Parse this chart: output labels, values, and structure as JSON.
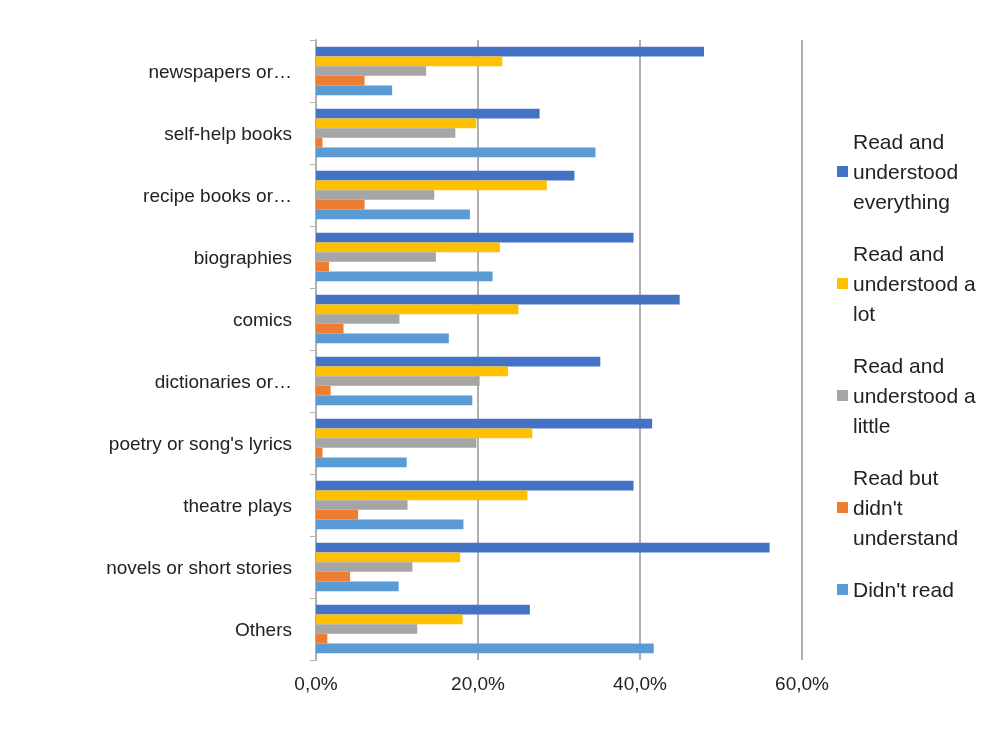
{
  "chart_data": {
    "type": "bar",
    "orientation": "horizontal",
    "categories": [
      "newspapers or…",
      "self-help books",
      "recipe books or…",
      "biographies",
      "comics",
      "dictionaries or…",
      "poetry or song's lyrics",
      "theatre plays",
      "novels or short stories",
      "Others"
    ],
    "series": [
      {
        "name": "Read and understood everything",
        "color": "#4472c4",
        "values": [
          47.9,
          27.6,
          31.9,
          39.2,
          44.9,
          35.1,
          41.5,
          39.2,
          56.0,
          26.4
        ]
      },
      {
        "name": "Read and understood a lot",
        "color": "#ffc000",
        "values": [
          23.0,
          19.8,
          28.5,
          22.7,
          25.0,
          23.7,
          26.7,
          26.1,
          17.8,
          18.1
        ]
      },
      {
        "name": "Read and understood a little",
        "color": "#a5a5a5",
        "values": [
          13.6,
          17.2,
          14.6,
          14.8,
          10.3,
          20.2,
          19.8,
          11.3,
          11.9,
          12.5
        ]
      },
      {
        "name": "Read but didn't understand",
        "color": "#ed7d31",
        "values": [
          6.0,
          0.8,
          6.0,
          1.6,
          3.4,
          1.8,
          0.8,
          5.2,
          4.2,
          1.4
        ]
      },
      {
        "name": "Didn't read",
        "color": "#5b9bd5",
        "values": [
          9.4,
          34.5,
          19.0,
          21.8,
          16.4,
          19.3,
          11.2,
          18.2,
          10.2,
          41.7
        ]
      }
    ],
    "xlim": [
      0,
      60
    ],
    "xticks": [
      {
        "value": 0,
        "label": "0,0%"
      },
      {
        "value": 20,
        "label": "20,0%"
      },
      {
        "value": 40,
        "label": "40,0%"
      },
      {
        "value": 60,
        "label": "60,0%"
      }
    ],
    "grid": "x",
    "legend": "right"
  }
}
